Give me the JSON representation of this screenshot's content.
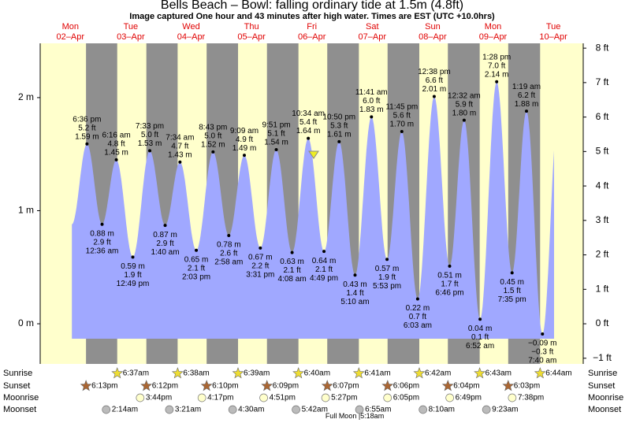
{
  "chart_data": {
    "type": "area",
    "title": "Bells Beach – Bowl: falling  ordinary tide at 1.5m (4.8ft)",
    "subtitle": "Image captured One hour and 43 minutes after high water. Times are EST (UTC +10.0hrs)",
    "days": [
      {
        "name": "Mon",
        "date": "02–Apr"
      },
      {
        "name": "Tue",
        "date": "03–Apr"
      },
      {
        "name": "Wed",
        "date": "04–Apr"
      },
      {
        "name": "Thu",
        "date": "05–Apr"
      },
      {
        "name": "Fri",
        "date": "06–Apr"
      },
      {
        "name": "Sat",
        "date": "07–Apr"
      },
      {
        "name": "Sun",
        "date": "08–Apr"
      },
      {
        "name": "Mon",
        "date": "09–Apr"
      },
      {
        "name": "Tue",
        "date": "10–Apr"
      }
    ],
    "ylim": [
      -0.355,
      2.48
    ],
    "yticks": [
      {
        "value": 0,
        "label": "0 m"
      },
      {
        "value": 1,
        "label": "1 m"
      },
      {
        "value": 2,
        "label": "2 m"
      }
    ],
    "y2lim": [
      -1.165,
      8.14
    ],
    "y2ticks": [
      {
        "value": -1,
        "label": "−1 ft"
      },
      {
        "value": 0,
        "label": "0 ft"
      },
      {
        "value": 1,
        "label": "1 ft"
      },
      {
        "value": 2,
        "label": "2 ft"
      },
      {
        "value": 3,
        "label": "3 ft"
      },
      {
        "value": 4,
        "label": "4 ft"
      },
      {
        "value": 5,
        "label": "5 ft"
      },
      {
        "value": 6,
        "label": "6 ft"
      },
      {
        "value": 7,
        "label": "7 ft"
      },
      {
        "value": 8,
        "label": "8 ft"
      }
    ],
    "color": "#a0a8ff",
    "events": [
      {
        "time": "6:36 pm",
        "height": 1.59,
        "height_label": "1.59 m",
        "feet_label": "5.2 ft"
      },
      {
        "time": "12:36 am",
        "height": 0.88,
        "height_label": "0.88 m",
        "feet_label": "2.9 ft"
      },
      {
        "time": "6:16 am",
        "height": 1.45,
        "height_label": "1.45 m",
        "feet_label": "4.8 ft"
      },
      {
        "time": "12:49 pm",
        "height": 0.59,
        "height_label": "0.59 m",
        "feet_label": "1.9 ft"
      },
      {
        "time": "7:33 pm",
        "height": 1.53,
        "height_label": "1.53 m",
        "feet_label": "5.0 ft"
      },
      {
        "time": "1:40 am",
        "height": 0.87,
        "height_label": "0.87 m",
        "feet_label": "2.9 ft"
      },
      {
        "time": "7:34 am",
        "height": 1.43,
        "height_label": "1.43 m",
        "feet_label": "4.7 ft"
      },
      {
        "time": "2:03 pm",
        "height": 0.65,
        "height_label": "0.65 m",
        "feet_label": "2.1 ft"
      },
      {
        "time": "8:43 pm",
        "height": 1.52,
        "height_label": "1.52 m",
        "feet_label": "5.0 ft"
      },
      {
        "time": "2:58 am",
        "height": 0.78,
        "height_label": "0.78 m",
        "feet_label": "2.6 ft"
      },
      {
        "time": "9:09 am",
        "height": 1.49,
        "height_label": "1.49 m",
        "feet_label": "4.9 ft"
      },
      {
        "time": "3:31 pm",
        "height": 0.67,
        "height_label": "0.67 m",
        "feet_label": "2.2 ft"
      },
      {
        "time": "9:51 pm",
        "height": 1.54,
        "height_label": "1.54 m",
        "feet_label": "5.1 ft"
      },
      {
        "time": "4:08 am",
        "height": 0.63,
        "height_label": "0.63 m",
        "feet_label": "2.1 ft"
      },
      {
        "time": "10:34 am",
        "height": 1.64,
        "height_label": "1.64 m",
        "feet_label": "5.4 ft"
      },
      {
        "time": "4:49 pm",
        "height": 0.64,
        "height_label": "0.64 m",
        "feet_label": "2.1 ft"
      },
      {
        "time": "10:50 pm",
        "height": 1.61,
        "height_label": "1.61 m",
        "feet_label": "5.3 ft"
      },
      {
        "time": "5:10 am",
        "height": 0.43,
        "height_label": "0.43 m",
        "feet_label": "1.4 ft"
      },
      {
        "time": "11:41 am",
        "height": 1.83,
        "height_label": "1.83 m",
        "feet_label": "6.0 ft"
      },
      {
        "time": "5:53 pm",
        "height": 0.57,
        "height_label": "0.57 m",
        "feet_label": "1.9 ft"
      },
      {
        "time": "11:45 pm",
        "height": 1.7,
        "height_label": "1.70 m",
        "feet_label": "5.6 ft"
      },
      {
        "time": "6:03 am",
        "height": 0.22,
        "height_label": "0.22 m",
        "feet_label": "0.7 ft"
      },
      {
        "time": "12:38 pm",
        "height": 2.01,
        "height_label": "2.01 m",
        "feet_label": "6.6 ft"
      },
      {
        "time": "6:46 pm",
        "height": 0.51,
        "height_label": "0.51 m",
        "feet_label": "1.7 ft"
      },
      {
        "time": "12:32 am",
        "height": 1.8,
        "height_label": "1.80 m",
        "feet_label": "5.9 ft"
      },
      {
        "time": "6:52 am",
        "height": 0.04,
        "height_label": "0.04 m",
        "feet_label": "0.1 ft"
      },
      {
        "time": "1:28 pm",
        "height": 2.14,
        "height_label": "2.14 m",
        "feet_label": "7.0 ft"
      },
      {
        "time": "7:35 pm",
        "height": 0.45,
        "height_label": "0.45 m",
        "feet_label": "1.5 ft"
      },
      {
        "time": "1:19 am",
        "height": 1.88,
        "height_label": "1.88 m",
        "feet_label": "6.2 ft"
      },
      {
        "time": "7:40 am",
        "height": -0.09,
        "height_label": "−0.09 m",
        "feet_label": "−0.3 ft"
      }
    ],
    "rows": {
      "sunrise": {
        "label": "Sunrise",
        "times": [
          "6:37am",
          "6:38am",
          "6:39am",
          "6:40am",
          "6:41am",
          "6:42am",
          "6:43am",
          "6:44am"
        ]
      },
      "sunset": {
        "label": "Sunset",
        "times": [
          "6:13pm",
          "6:12pm",
          "6:10pm",
          "6:09pm",
          "6:07pm",
          "6:06pm",
          "6:04pm",
          "6:03pm"
        ]
      },
      "moonrise": {
        "label": "Moonrise",
        "times": [
          "3:44pm",
          "4:17pm",
          "4:51pm",
          "5:27pm",
          "6:05pm",
          "6:49pm",
          "7:38pm"
        ]
      },
      "moonset": {
        "label": "Moonset",
        "times": [
          "2:14am",
          "3:21am",
          "4:30am",
          "5:42am",
          "6:55am",
          "8:10am",
          "9:23am"
        ]
      }
    },
    "moon_phase": "Full Moon |5:18am"
  }
}
